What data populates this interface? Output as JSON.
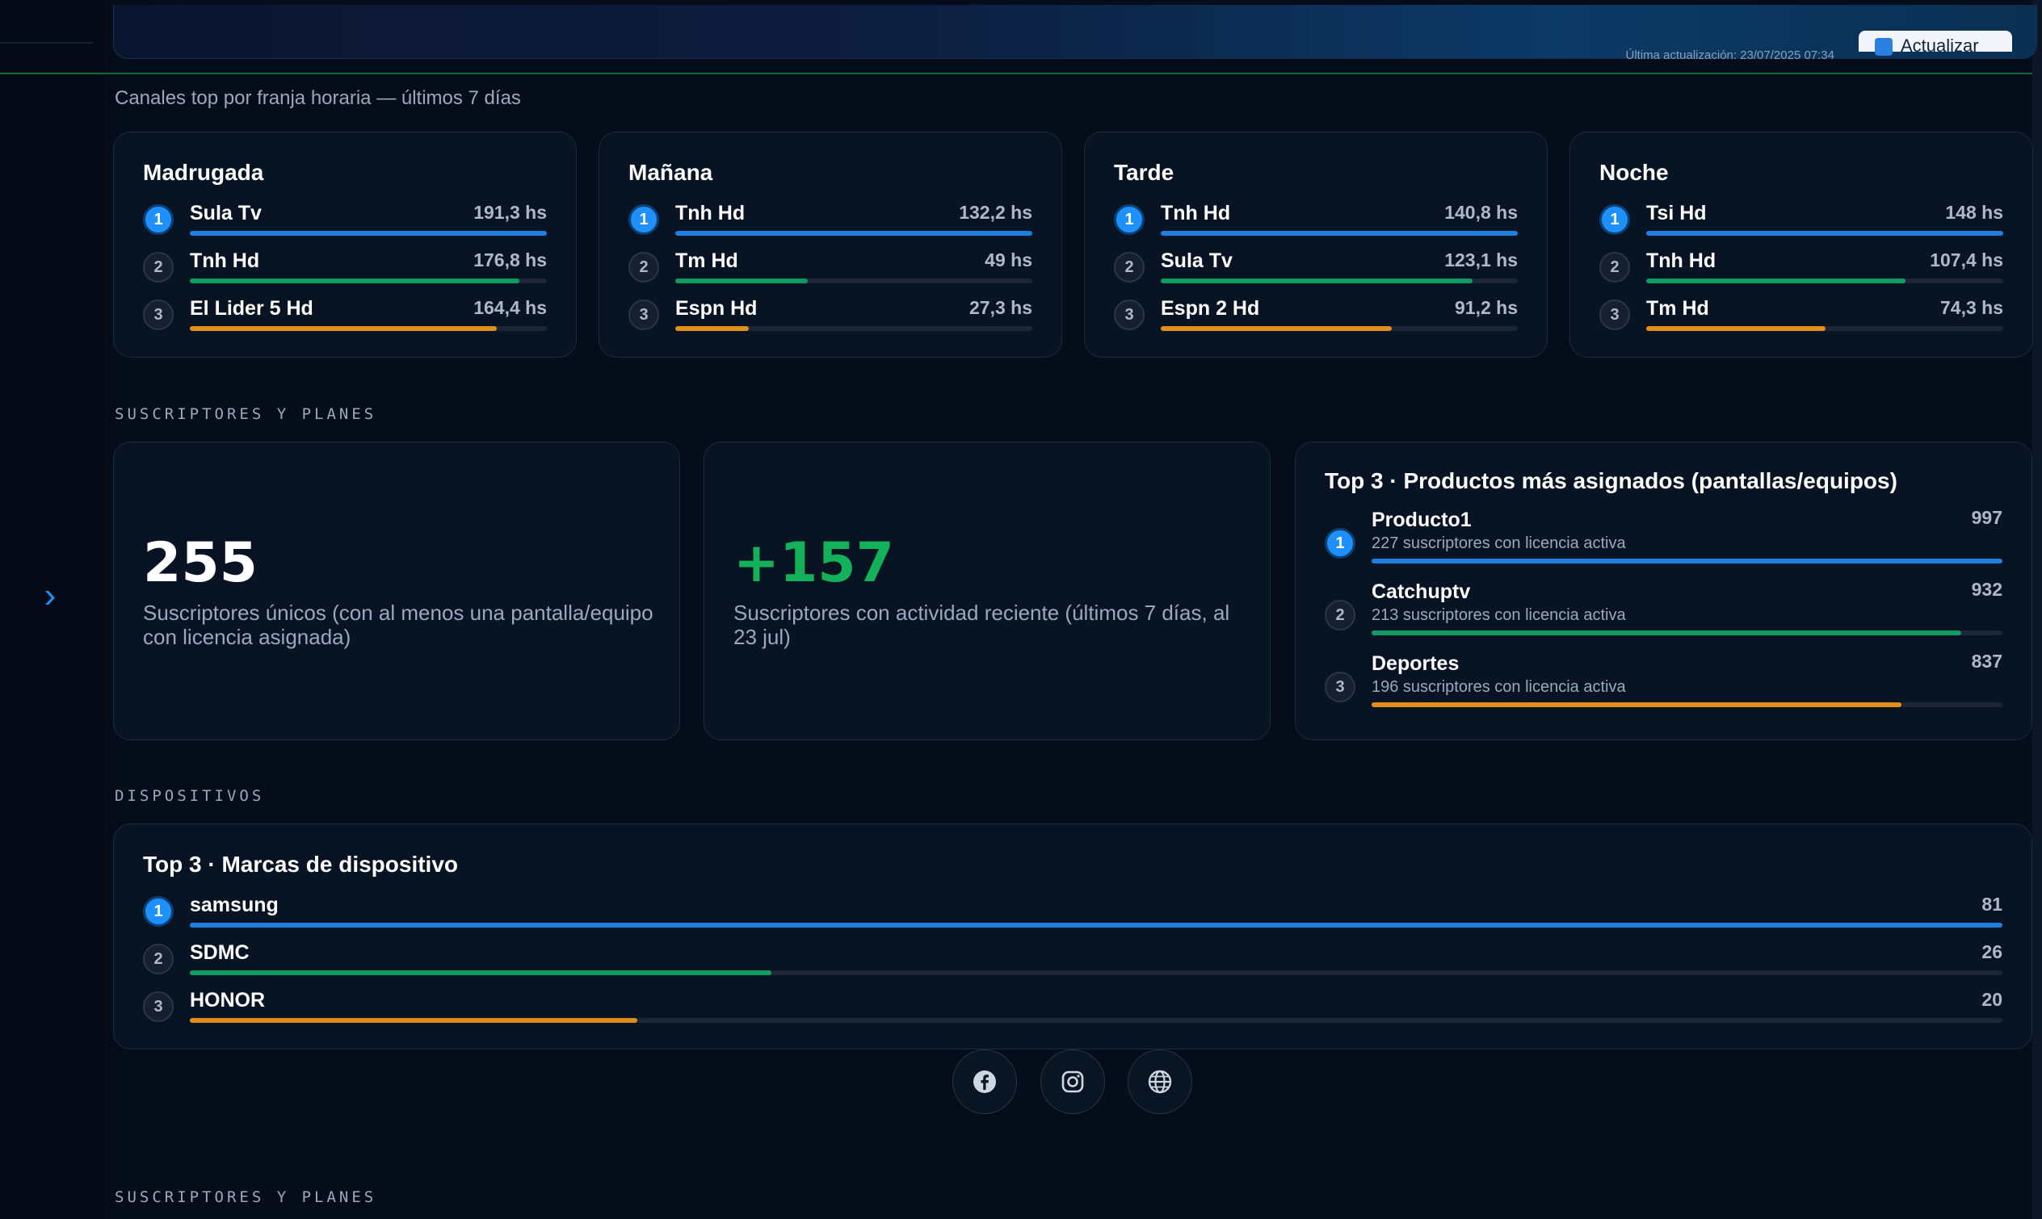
{
  "header": {
    "meta_text": "Última actualización: 23/07/2025 07:34",
    "update_button": "Actualizar"
  },
  "franjas": {
    "caption": "Canales top por franja horaria — últimos 7 días",
    "cards": [
      {
        "title": "Madrugada",
        "rows": [
          {
            "rank": "1",
            "name": "Sula Tv",
            "value": "191,3 hs",
            "fraction": 1.0
          },
          {
            "rank": "2",
            "name": "Tnh Hd",
            "value": "176,8 hs",
            "fraction": 0.924
          },
          {
            "rank": "3",
            "name": "El Lider 5 Hd",
            "value": "164,4 hs",
            "fraction": 0.859
          }
        ]
      },
      {
        "title": "Mañana",
        "rows": [
          {
            "rank": "1",
            "name": "Tnh Hd",
            "value": "132,2 hs",
            "fraction": 1.0
          },
          {
            "rank": "2",
            "name": "Tm Hd",
            "value": "49 hs",
            "fraction": 0.371
          },
          {
            "rank": "3",
            "name": "Espn Hd",
            "value": "27,3 hs",
            "fraction": 0.207
          }
        ]
      },
      {
        "title": "Tarde",
        "rows": [
          {
            "rank": "1",
            "name": "Tnh Hd",
            "value": "140,8 hs",
            "fraction": 1.0
          },
          {
            "rank": "2",
            "name": "Sula Tv",
            "value": "123,1 hs",
            "fraction": 0.874
          },
          {
            "rank": "3",
            "name": "Espn 2 Hd",
            "value": "91,2 hs",
            "fraction": 0.648
          }
        ]
      },
      {
        "title": "Noche",
        "rows": [
          {
            "rank": "1",
            "name": "Tsi Hd",
            "value": "148 hs",
            "fraction": 1.0
          },
          {
            "rank": "2",
            "name": "Tnh Hd",
            "value": "107,4 hs",
            "fraction": 0.726
          },
          {
            "rank": "3",
            "name": "Tm Hd",
            "value": "74,3 hs",
            "fraction": 0.502
          }
        ]
      }
    ]
  },
  "subscribers": {
    "section_label": "SUSCRIPTORES Y PLANES",
    "unique": {
      "value": "255",
      "description": "Suscriptores únicos (con al menos una pantalla/equipo con licencia asignada)"
    },
    "active": {
      "value": "+157",
      "description": "Suscriptores con actividad reciente (últimos 7 días, al 23 jul)"
    },
    "products": {
      "title": "Top 3 · Productos más asignados (pantallas/equipos)",
      "rows": [
        {
          "rank": "1",
          "name": "Producto1",
          "sub": "227 suscriptores con licencia activa",
          "value": "997",
          "fraction": 1.0
        },
        {
          "rank": "2",
          "name": "Catchuptv",
          "sub": "213 suscriptores con licencia activa",
          "value": "932",
          "fraction": 0.935
        },
        {
          "rank": "3",
          "name": "Deportes",
          "sub": "196 suscriptores con licencia activa",
          "value": "837",
          "fraction": 0.84
        }
      ]
    }
  },
  "devices": {
    "section_label": "DISPOSITIVOS",
    "title": "Top 3 · Marcas de dispositivo",
    "rows": [
      {
        "rank": "1",
        "name": "samsung",
        "value": "81",
        "fraction": 1.0
      },
      {
        "rank": "2",
        "name": "SDMC",
        "value": "26",
        "fraction": 0.321
      },
      {
        "rank": "3",
        "name": "HONOR",
        "value": "20",
        "fraction": 0.247
      }
    ]
  },
  "social": [
    {
      "icon": "facebook-icon"
    },
    {
      "icon": "instagram-icon"
    },
    {
      "icon": "globe-icon"
    }
  ],
  "footer_section_label": "SUSCRIPTORES Y PLANES",
  "colors": {
    "rank1": "#1e7fe0",
    "rank2": "#129a63",
    "rank3": "#e08f1a",
    "positive": "#13b25a"
  }
}
